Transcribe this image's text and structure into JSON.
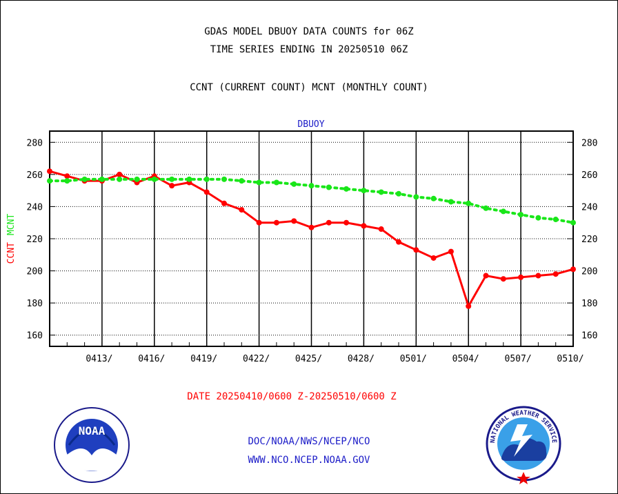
{
  "titles": {
    "line1": "GDAS MODEL DBUOY DATA COUNTS for 06Z",
    "line2": "TIME SERIES ENDING IN 20250510 06Z",
    "line3": "CCNT (CURRENT COUNT) MCNT (MONTHLY COUNT)"
  },
  "footer": {
    "path": "DOC/NOAA/NWS/NCEP/NCO",
    "url": "WWW.NCO.NCEP.NOAA.GOV"
  },
  "logos": {
    "noaa_text": "NOAA",
    "nws_text": "NATIONAL WEATHER SERVICE"
  },
  "colors": {
    "ccnt": "#ff0000",
    "mcnt": "#19e619",
    "axis": "#000000",
    "panel_title": "#1c1cc8"
  },
  "chart_data": {
    "type": "line",
    "title": "DBUOY",
    "xlabel": "DATE 20250410/0600 Z-20250510/0600 Z",
    "ylabel_parts": [
      "CCNT",
      "MCNT"
    ],
    "ylim": [
      153,
      287
    ],
    "yticks": [
      160,
      180,
      200,
      220,
      240,
      260,
      280
    ],
    "xlim": [
      "20250410",
      "20250510"
    ],
    "xticks": [
      "0413/",
      "0416/",
      "0419/",
      "0422/",
      "0425/",
      "0428/",
      "0501/",
      "0504/",
      "0507/",
      "0510/"
    ],
    "grid": true,
    "x": [
      "20250410",
      "20250411",
      "20250412",
      "20250413",
      "20250414",
      "20250415",
      "20250416",
      "20250417",
      "20250418",
      "20250419",
      "20250420",
      "20250421",
      "20250422",
      "20250423",
      "20250424",
      "20250425",
      "20250426",
      "20250427",
      "20250428",
      "20250429",
      "20250430",
      "20250501",
      "20250502",
      "20250503",
      "20250504",
      "20250505",
      "20250506",
      "20250507",
      "20250508",
      "20250509",
      "20250510"
    ],
    "series": [
      {
        "name": "CCNT",
        "values": [
          262,
          259,
          256,
          256,
          260,
          255,
          259,
          253,
          255,
          249,
          242,
          238,
          230,
          230,
          231,
          227,
          230,
          230,
          228,
          226,
          218,
          213,
          208,
          212,
          178,
          197,
          195,
          196,
          197,
          198,
          201
        ]
      },
      {
        "name": "MCNT",
        "values": [
          256,
          256,
          257,
          257,
          257,
          257,
          257,
          257,
          257,
          257,
          257,
          256,
          255,
          255,
          254,
          253,
          252,
          251,
          250,
          249,
          248,
          246,
          245,
          243,
          242,
          239,
          237,
          235,
          233,
          232,
          230
        ]
      }
    ]
  }
}
